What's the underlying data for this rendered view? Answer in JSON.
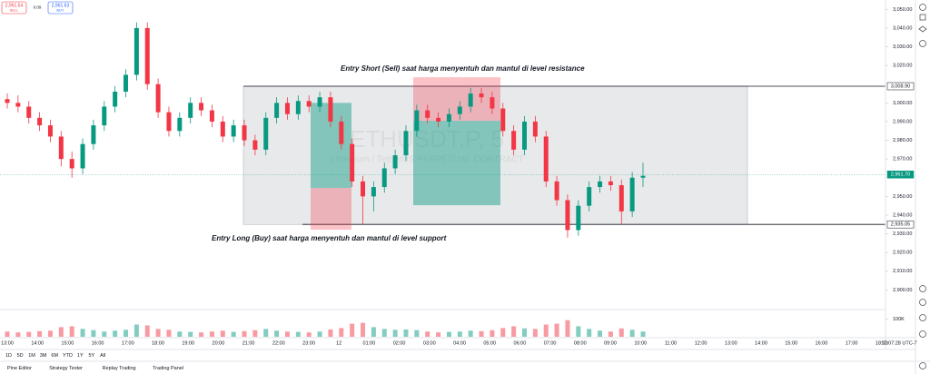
{
  "chart_data": {
    "type": "candlestick",
    "watermark": "ETHUSDT.P, 5",
    "watermark_subtitle": "Ethereum / TetherUS PERPETUAL CONTRACT",
    "up_color": "#089981",
    "down_color": "#f23645",
    "ylim": [
      2890,
      3055
    ],
    "yticks": [
      {
        "value": 3050,
        "label": "3,050.00"
      },
      {
        "value": 3040,
        "label": "3,040.00"
      },
      {
        "value": 3030,
        "label": "3,030.00"
      },
      {
        "value": 3020,
        "label": "3,020.00"
      },
      {
        "value": 3000,
        "label": "3,000.00"
      },
      {
        "value": 2990,
        "label": "2,990.00"
      },
      {
        "value": 2980,
        "label": "2,980.00"
      },
      {
        "value": 2970,
        "label": "2,970.00"
      },
      {
        "value": 2950,
        "label": "2,950.00"
      },
      {
        "value": 2940,
        "label": "2,940.00"
      },
      {
        "value": 2930,
        "label": "2,930.00"
      },
      {
        "value": 2920,
        "label": "2,920.00"
      },
      {
        "value": 2910,
        "label": "2,910.00"
      },
      {
        "value": 2900,
        "label": "2,900.00"
      }
    ],
    "price_tags": [
      {
        "value": 3008.9,
        "label": "3,008.90",
        "color": "#ffffff"
      },
      {
        "value": 2961.7,
        "label": "2,961.70",
        "color": "#089981"
      },
      {
        "value": 2935.05,
        "label": "2,935.05",
        "color": "#ffffff"
      }
    ],
    "xlabels": [
      "13:00",
      "14:00",
      "15:00",
      "16:00",
      "17:00",
      "18:00",
      "19:00",
      "20:00",
      "21:00",
      "22:00",
      "23:00",
      "12",
      "01:00",
      "02:00",
      "03:00",
      "04:00",
      "05:00",
      "06:00",
      "07:00",
      "08:00",
      "09:00",
      "10:00",
      "11:00",
      "12:00",
      "13:00",
      "14:00",
      "15:00",
      "16:00",
      "17:00",
      "18:00"
    ],
    "clock": "10:07:28 UTC-7",
    "ohlc": [
      [
        3002,
        3005,
        2997,
        3000
      ],
      [
        3000,
        3004,
        2995,
        2998
      ],
      [
        2998,
        3001,
        2989,
        2992
      ],
      [
        2992,
        2995,
        2985,
        2988
      ],
      [
        2988,
        2991,
        2979,
        2982
      ],
      [
        2982,
        2985,
        2966,
        2970
      ],
      [
        2970,
        2974,
        2960,
        2965
      ],
      [
        2965,
        2981,
        2962,
        2978
      ],
      [
        2978,
        2991,
        2975,
        2988
      ],
      [
        2988,
        3001,
        2985,
        2998
      ],
      [
        2998,
        3009,
        2995,
        3006
      ],
      [
        3006,
        3018,
        3003,
        3015
      ],
      [
        3015,
        3043,
        3012,
        3040
      ],
      [
        3040,
        3043,
        3007,
        3010
      ],
      [
        3010,
        3013,
        2992,
        2995
      ],
      [
        2995,
        2998,
        2982,
        2985
      ],
      [
        2985,
        2995,
        2982,
        2992
      ],
      [
        2992,
        3003,
        2989,
        3000
      ],
      [
        3000,
        3003,
        2993,
        2996
      ],
      [
        2996,
        2999,
        2987,
        2990
      ],
      [
        2990,
        2993,
        2979,
        2982
      ],
      [
        2982,
        2991,
        2979,
        2988
      ],
      [
        2988,
        2991,
        2977,
        2980
      ],
      [
        2980,
        2983,
        2972,
        2975
      ],
      [
        2975,
        2995,
        2972,
        2992
      ],
      [
        2992,
        3003,
        2989,
        3000
      ],
      [
        3000,
        3003,
        2991,
        2994
      ],
      [
        2994,
        3004,
        2991,
        3001
      ],
      [
        3001,
        3004,
        2995,
        2998
      ],
      [
        2998,
        3006,
        2995,
        3003
      ],
      [
        3003,
        3006,
        2987,
        2990
      ],
      [
        2990,
        2993,
        2975,
        2978
      ],
      [
        2978,
        2981,
        2955,
        2958
      ],
      [
        2958,
        2961,
        2935,
        2950
      ],
      [
        2950,
        2958,
        2942,
        2955
      ],
      [
        2955,
        2968,
        2952,
        2965
      ],
      [
        2965,
        2975,
        2962,
        2972
      ],
      [
        2972,
        2988,
        2969,
        2985
      ],
      [
        2985,
        2999,
        2982,
        2996
      ],
      [
        2996,
        2999,
        2989,
        2992
      ],
      [
        2992,
        2995,
        2987,
        2990
      ],
      [
        2990,
        2997,
        2987,
        2994
      ],
      [
        2994,
        3001,
        2991,
        2998
      ],
      [
        2998,
        3008,
        2995,
        3005
      ],
      [
        3005,
        3008,
        3000,
        3003
      ],
      [
        3003,
        3006,
        2994,
        2997
      ],
      [
        2997,
        3000,
        2982,
        2985
      ],
      [
        2985,
        2988,
        2972,
        2975
      ],
      [
        2975,
        2993,
        2972,
        2990
      ],
      [
        2990,
        2993,
        2979,
        2982
      ],
      [
        2982,
        2985,
        2955,
        2958
      ],
      [
        2958,
        2961,
        2945,
        2948
      ],
      [
        2948,
        2951,
        2928,
        2932
      ],
      [
        2932,
        2948,
        2929,
        2945
      ],
      [
        2945,
        2958,
        2942,
        2955
      ],
      [
        2955,
        2961,
        2952,
        2958
      ],
      [
        2958,
        2961,
        2953,
        2956
      ],
      [
        2956,
        2959,
        2935,
        2942
      ],
      [
        2942,
        2963,
        2939,
        2960
      ],
      [
        2960,
        2968,
        2955,
        2961
      ]
    ],
    "volume": [
      30000,
      25000,
      28000,
      32000,
      35000,
      55000,
      60000,
      45000,
      38000,
      30000,
      35000,
      40000,
      70000,
      65000,
      45000,
      40000,
      30000,
      28000,
      25000,
      30000,
      35000,
      28000,
      32000,
      38000,
      45000,
      35000,
      30000,
      28000,
      25000,
      30000,
      42000,
      50000,
      75000,
      80000,
      55000,
      45000,
      40000,
      42000,
      38000,
      30000,
      25000,
      28000,
      30000,
      35000,
      32000,
      38000,
      50000,
      60000,
      48000,
      45000,
      70000,
      75000,
      95000,
      60000,
      45000,
      35000,
      30000,
      48000,
      40000,
      30000
    ],
    "volume_ylim": [
      0,
      135000
    ],
    "volume_yticks": [
      {
        "value": 100000,
        "label": "100K"
      }
    ],
    "zone": [
      3008.9,
      2935.05
    ],
    "long_position": {
      "target": 3000,
      "entry": 2954.5,
      "stop": 2932.2
    },
    "short_position": {
      "stop": 3013.7,
      "entry": 2990.4,
      "target": 2945.3
    },
    "annotations": [
      "Entry Short (Sell) saat harga menyentuh dan mantul di level resistance",
      "Entry Long (Buy) saat harga menyentuh dan mantul di level support"
    ]
  },
  "ui": {
    "sell": {
      "price": "2,961.54",
      "label": "SELL"
    },
    "spread": "0.09",
    "buy": {
      "price": "2,961.63",
      "label": "BUY"
    },
    "timeframes": [
      "1D",
      "5D",
      "1M",
      "3M",
      "6M",
      "YTD",
      "1Y",
      "5Y",
      "All"
    ],
    "tabs": [
      "Pine Editor",
      "Strategy Tester",
      "Replay Trading",
      "Trading Panel"
    ]
  }
}
